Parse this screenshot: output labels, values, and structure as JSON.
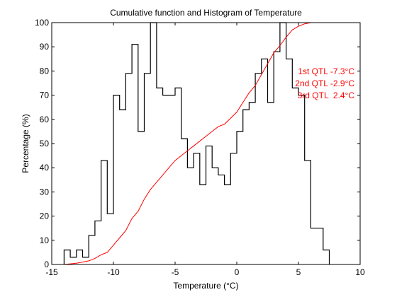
{
  "chart_data": {
    "type": "line",
    "title": "Cumulative function and Histogram of Temperature",
    "xlabel": "Temperature (°C)",
    "ylabel": "Percentage (%)",
    "xlim": [
      -15,
      10
    ],
    "ylim": [
      0,
      100
    ],
    "xticks": [
      -15,
      -10,
      -5,
      0,
      5,
      10
    ],
    "yticks": [
      0,
      10,
      20,
      30,
      40,
      50,
      60,
      70,
      80,
      90,
      100
    ],
    "grid": false,
    "series": [
      {
        "kind": "histogram-stairs",
        "color": "#000000",
        "bin_width": 0.5,
        "bins": [
          {
            "x0": -14.0,
            "value": 6
          },
          {
            "x0": -13.5,
            "value": 3
          },
          {
            "x0": -13.0,
            "value": 6
          },
          {
            "x0": -12.5,
            "value": 3
          },
          {
            "x0": -12.0,
            "value": 12
          },
          {
            "x0": -11.5,
            "value": 18
          },
          {
            "x0": -11.0,
            "value": 43
          },
          {
            "x0": -10.5,
            "value": 21
          },
          {
            "x0": -10.0,
            "value": 70
          },
          {
            "x0": -9.5,
            "value": 64
          },
          {
            "x0": -9.0,
            "value": 79
          },
          {
            "x0": -8.5,
            "value": 91
          },
          {
            "x0": -8.0,
            "value": 55
          },
          {
            "x0": -7.5,
            "value": 79
          },
          {
            "x0": -7.0,
            "value": 100
          },
          {
            "x0": -6.5,
            "value": 73
          },
          {
            "x0": -6.0,
            "value": 70
          },
          {
            "x0": -5.5,
            "value": 70
          },
          {
            "x0": -5.0,
            "value": 73
          },
          {
            "x0": -4.5,
            "value": 52
          },
          {
            "x0": -4.0,
            "value": 40
          },
          {
            "x0": -3.5,
            "value": 46
          },
          {
            "x0": -3.0,
            "value": 33
          },
          {
            "x0": -2.5,
            "value": 49
          },
          {
            "x0": -2.0,
            "value": 40
          },
          {
            "x0": -1.5,
            "value": 37
          },
          {
            "x0": -1.0,
            "value": 33
          },
          {
            "x0": -0.5,
            "value": 46
          },
          {
            "x0": 0.0,
            "value": 55
          },
          {
            "x0": 0.5,
            "value": 64
          },
          {
            "x0": 1.0,
            "value": 67
          },
          {
            "x0": 1.5,
            "value": 79
          },
          {
            "x0": 2.0,
            "value": 85
          },
          {
            "x0": 2.5,
            "value": 67
          },
          {
            "x0": 3.0,
            "value": 88
          },
          {
            "x0": 3.5,
            "value": 100
          },
          {
            "x0": 4.0,
            "value": 85
          },
          {
            "x0": 4.5,
            "value": 73
          },
          {
            "x0": 5.0,
            "value": 70
          },
          {
            "x0": 5.5,
            "value": 43
          },
          {
            "x0": 6.0,
            "value": 15
          },
          {
            "x0": 6.5,
            "value": 15
          },
          {
            "x0": 7.0,
            "value": 6
          }
        ]
      },
      {
        "kind": "cumulative-line",
        "color": "#ff0000",
        "x": [
          -14,
          -13,
          -12.5,
          -12,
          -11.5,
          -11,
          -10.5,
          -10,
          -9.5,
          -9,
          -8.5,
          -8,
          -7.5,
          -7,
          -6.5,
          -6,
          -5.5,
          -5,
          -4.5,
          -4,
          -3.5,
          -3,
          -2.5,
          -2,
          -1.5,
          -1,
          -0.5,
          0,
          0.5,
          1,
          1.5,
          2,
          2.5,
          3,
          3.5,
          4,
          4.5,
          5,
          5.5,
          6,
          6.5,
          7,
          7.5,
          10
        ],
        "y": [
          0,
          0.5,
          1,
          1.5,
          2.5,
          4,
          5,
          8,
          11,
          14,
          19,
          22,
          27,
          31,
          34,
          37,
          40,
          43,
          45,
          47,
          49,
          51,
          53,
          55,
          57,
          58,
          60.5,
          63,
          67,
          71,
          74,
          78.5,
          83,
          87.5,
          90.5,
          94,
          97,
          98.5,
          99.5,
          100,
          100,
          100,
          100,
          100
        ]
      }
    ],
    "annotations": [
      {
        "text": "1st QTL -7.3°C",
        "color": "#ff0000"
      },
      {
        "text": "2nd QTL -2.9°C",
        "color": "#ff0000"
      },
      {
        "text": "3rd QTL  2.4°C",
        "color": "#ff0000"
      }
    ]
  }
}
